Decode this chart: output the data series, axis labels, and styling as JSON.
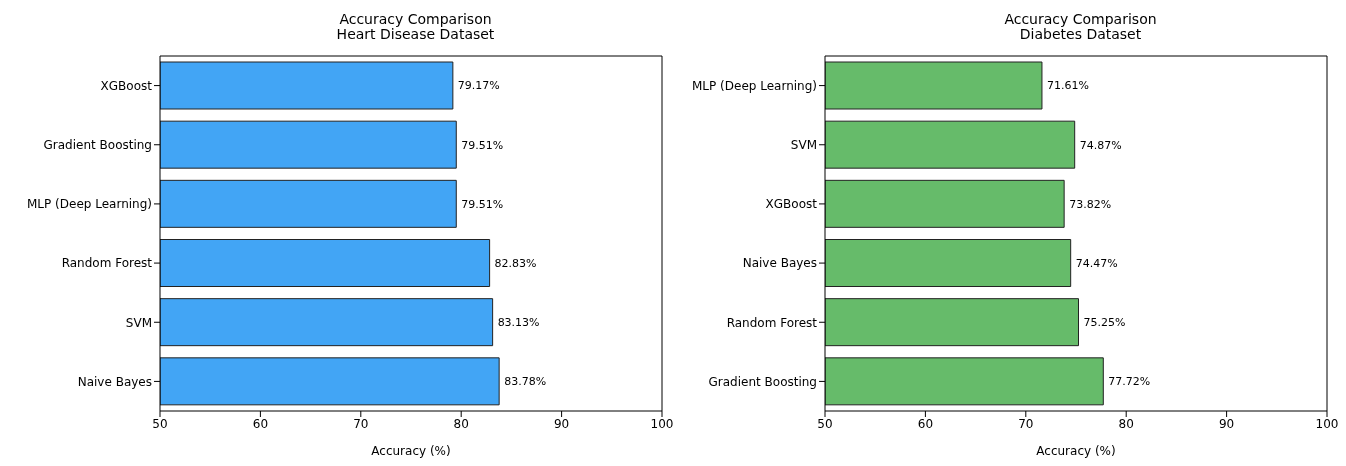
{
  "chart_data": [
    {
      "type": "bar",
      "orientation": "horizontal",
      "title": "Accuracy Comparison\nHeart Disease Dataset",
      "xlabel": "Accuracy (%)",
      "categories": [
        "XGBoost",
        "Gradient Boosting",
        "MLP (Deep Learning)",
        "Random Forest",
        "SVM",
        "Naive Bayes"
      ],
      "values": [
        79.17,
        79.51,
        79.51,
        82.83,
        83.13,
        83.78
      ],
      "value_labels": [
        "79.17%",
        "79.51%",
        "79.51%",
        "82.83%",
        "83.13%",
        "83.78%"
      ],
      "color": "#42a5f5",
      "xlim": [
        50,
        100
      ],
      "xticks": [
        50,
        60,
        70,
        80,
        90,
        100
      ],
      "grid": false,
      "legend": false
    },
    {
      "type": "bar",
      "orientation": "horizontal",
      "title": "Accuracy Comparison\nDiabetes Dataset",
      "xlabel": "Accuracy (%)",
      "categories": [
        "MLP (Deep Learning)",
        "SVM",
        "XGBoost",
        "Naive Bayes",
        "Random Forest",
        "Gradient Boosting"
      ],
      "values": [
        71.61,
        74.87,
        73.82,
        74.47,
        75.25,
        77.72
      ],
      "value_labels": [
        "71.61%",
        "74.87%",
        "73.82%",
        "74.47%",
        "75.25%",
        "77.72%"
      ],
      "color": "#66bb6a",
      "xlim": [
        50,
        100
      ],
      "xticks": [
        50,
        60,
        70,
        80,
        90,
        100
      ],
      "grid": false,
      "legend": false
    }
  ]
}
